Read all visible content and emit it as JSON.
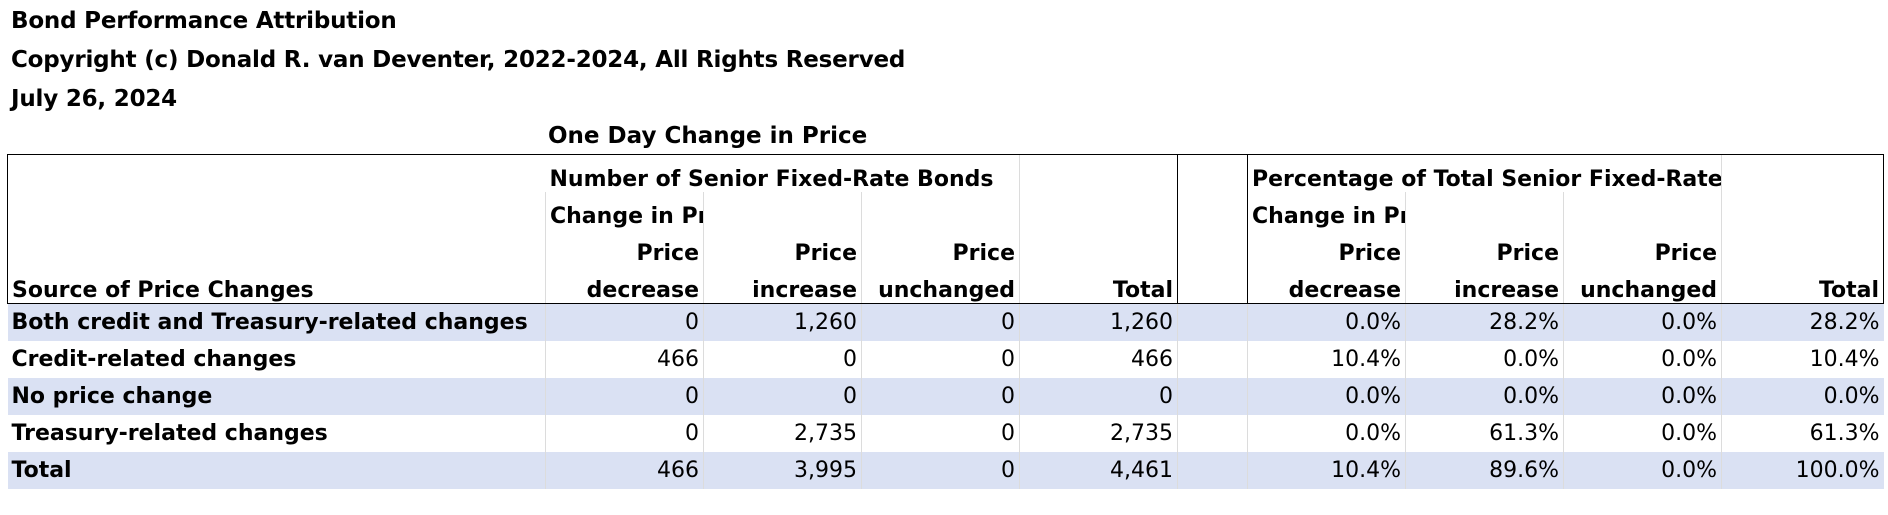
{
  "header": {
    "title": "Bond Performance Attribution",
    "copyright": "Copyright (c) Donald R. van Deventer, 2022-2024, All Rights Reserved",
    "date": "July 26, 2024"
  },
  "table": {
    "title": "One Day Change in Price",
    "group_left": "Number of Senior Fixed-Rate Bonds",
    "group_right": "Percentage of Total Senior Fixed-Rate Bonds",
    "subgroup_left": "Change in Price",
    "subgroup_right": "Change in Price",
    "row_header": "Source of Price Changes",
    "col_top": [
      "Price",
      "Price",
      "Price",
      ""
    ],
    "col_bottom": [
      "decrease",
      "increase",
      "unchanged",
      "Total"
    ],
    "rows": [
      {
        "label": "Both credit and Treasury-related changes",
        "counts": [
          "0",
          "1,260",
          "0",
          "1,260"
        ],
        "pcts": [
          "0.0%",
          "28.2%",
          "0.0%",
          "28.2%"
        ]
      },
      {
        "label": "Credit-related changes",
        "counts": [
          "466",
          "0",
          "0",
          "466"
        ],
        "pcts": [
          "10.4%",
          "0.0%",
          "0.0%",
          "10.4%"
        ]
      },
      {
        "label": "No price change",
        "counts": [
          "0",
          "0",
          "0",
          "0"
        ],
        "pcts": [
          "0.0%",
          "0.0%",
          "0.0%",
          "0.0%"
        ]
      },
      {
        "label": "Treasury-related changes",
        "counts": [
          "0",
          "2,735",
          "0",
          "2,735"
        ],
        "pcts": [
          "0.0%",
          "61.3%",
          "0.0%",
          "61.3%"
        ]
      },
      {
        "label": "Total",
        "counts": [
          "466",
          "3,995",
          "0",
          "4,461"
        ],
        "pcts": [
          "10.4%",
          "89.6%",
          "0.0%",
          "100.0%"
        ]
      }
    ]
  },
  "colors": {
    "row_shade": "#dae1f3",
    "border": "#000000",
    "gridline": "#dcdcdc"
  }
}
